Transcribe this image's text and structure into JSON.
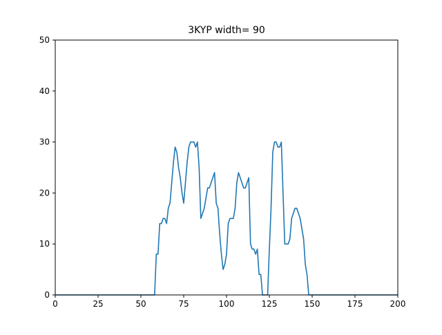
{
  "chart_data": {
    "type": "line",
    "title": "3KYP width= 90",
    "xlabel": "",
    "ylabel": "",
    "xlim": [
      0,
      200
    ],
    "ylim": [
      0,
      50
    ],
    "xticks": [
      0,
      25,
      50,
      75,
      100,
      125,
      150,
      175,
      200
    ],
    "yticks": [
      0,
      10,
      20,
      30,
      40,
      50
    ],
    "grid": false,
    "legend": "none",
    "colors": {
      "line": "#1f77b4",
      "axes": "#000000",
      "background": "#ffffff"
    },
    "series": [
      {
        "x": [
          0,
          58,
          59,
          60,
          61,
          62,
          63,
          64,
          65,
          66,
          67,
          68,
          69,
          70,
          71,
          72,
          73,
          74,
          75,
          76,
          77,
          78,
          79,
          80,
          81,
          82,
          83,
          84,
          85,
          86,
          87,
          88,
          89,
          90,
          91,
          92,
          93,
          94,
          95,
          96,
          97,
          98,
          99,
          100,
          101,
          102,
          103,
          104,
          105,
          106,
          107,
          108,
          109,
          110,
          111,
          112,
          113,
          114,
          115,
          116,
          117,
          118,
          119,
          120,
          121,
          122,
          123,
          124,
          125,
          126,
          127,
          128,
          129,
          130,
          131,
          132,
          133,
          134,
          135,
          136,
          137,
          138,
          139,
          140,
          141,
          142,
          143,
          144,
          145,
          146,
          147,
          148,
          149,
          200
        ],
        "y": [
          0,
          0,
          8,
          8,
          14,
          14,
          15,
          15,
          14,
          17,
          18,
          22,
          26,
          29,
          28,
          25,
          23,
          20,
          18,
          22,
          26,
          29,
          30,
          30,
          30,
          29,
          30,
          25,
          15,
          16,
          17,
          19,
          21,
          21,
          22,
          23,
          24,
          18,
          17,
          12,
          8,
          5,
          6,
          8,
          14,
          15,
          15,
          15,
          17,
          22,
          24,
          23,
          22,
          21,
          21,
          22,
          23,
          10,
          9,
          9,
          8,
          9,
          4,
          4,
          0,
          0,
          0,
          0,
          9,
          17,
          28,
          30,
          30,
          29,
          29,
          30,
          20,
          10,
          10,
          10,
          11,
          15,
          16,
          17,
          17,
          16,
          15,
          13,
          11,
          6,
          4,
          0,
          0,
          0
        ]
      }
    ]
  }
}
